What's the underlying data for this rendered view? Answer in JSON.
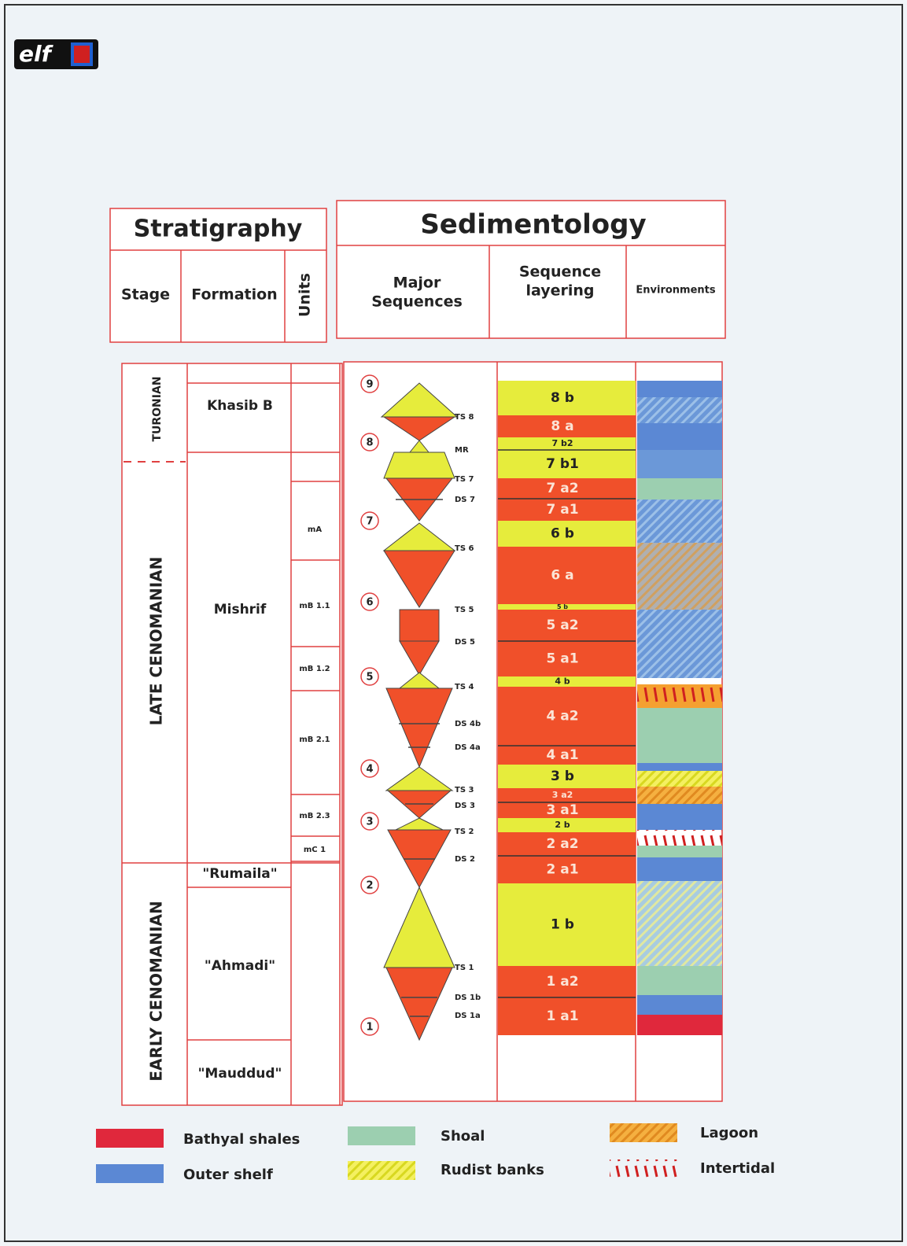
{
  "logo": "elf",
  "stratigraphy": {
    "title": "Stratigraphy",
    "columns": [
      "Stage",
      "Formation",
      "Units"
    ]
  },
  "sedimentology": {
    "title": "Sedimentology",
    "columns": [
      [
        "Major",
        "Sequences"
      ],
      [
        "Sequence",
        "layering"
      ],
      "Environments"
    ]
  },
  "stages": [
    "TURONIAN",
    "LATE CENOMANIAN",
    "EARLY CENOMANIAN"
  ],
  "formations": [
    "Khasib B",
    "Mishrif",
    "\"Rumaila\"",
    "\"Ahmadi\"",
    "\"Mauddud\""
  ],
  "units": [
    "mA",
    "mB 1.1",
    "mB 1.2",
    "mB 2.1",
    "mB 2.3",
    "mC 1"
  ],
  "sequences": [
    "9",
    "8",
    "7",
    "6",
    "5",
    "4",
    "3",
    "2",
    "1"
  ],
  "surfaces": [
    "TS 8",
    "MR",
    "TS 7",
    "DS 7",
    "TS 6",
    "TS 5",
    "DS 5",
    "TS 4",
    "DS 4b",
    "DS 4a",
    "TS 3",
    "DS 3",
    "TS 2",
    "DS 2",
    "TS 1",
    "DS 1b",
    "DS 1a"
  ],
  "layers": [
    "8 b",
    "8 a",
    "7 b2",
    "7 b1",
    "7 a2",
    "7 a1",
    "6 b",
    "6 a",
    "5 b",
    "5 a2",
    "5 a1",
    "4 b",
    "4 a2",
    "4 a1",
    "3 b",
    "3 a2",
    "3 a1",
    "2 b",
    "2 a2",
    "2 a1",
    "1 b",
    "1 a2",
    "1 a1"
  ],
  "legend": [
    "Bathyal shales",
    "Outer shelf",
    "Shoal",
    "Rudist banks",
    "Lagoon",
    "Intertidal"
  ]
}
